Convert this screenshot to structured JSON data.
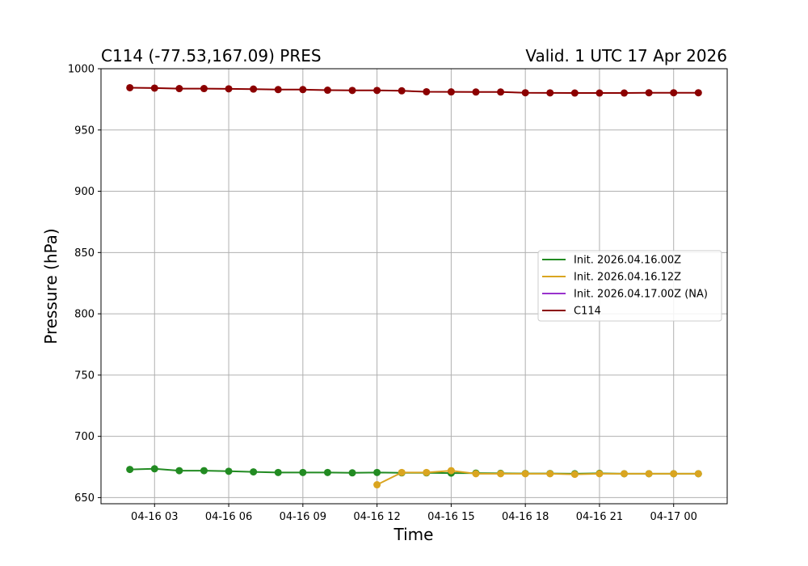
{
  "chart_data": {
    "type": "line",
    "title_left": "C114 (-77.53,167.09) PRES",
    "title_right": "Valid. 1 UTC 17 Apr 2026",
    "xlabel": "Time",
    "ylabel": "Pressure (hPa)",
    "ylim": [
      645,
      1000
    ],
    "yticks": [
      650,
      700,
      750,
      800,
      850,
      900,
      950,
      1000
    ],
    "xlim": [
      "2026-04-16 00:50",
      "2026-04-17 02:10"
    ],
    "xticks": [
      {
        "t": "2026-04-16 03:00",
        "label": "04-16 03"
      },
      {
        "t": "2026-04-16 06:00",
        "label": "04-16 06"
      },
      {
        "t": "2026-04-16 09:00",
        "label": "04-16 09"
      },
      {
        "t": "2026-04-16 12:00",
        "label": "04-16 12"
      },
      {
        "t": "2026-04-16 15:00",
        "label": "04-16 15"
      },
      {
        "t": "2026-04-16 18:00",
        "label": "04-16 18"
      },
      {
        "t": "2026-04-16 21:00",
        "label": "04-16 21"
      },
      {
        "t": "2026-04-17 00:00",
        "label": "04-17 00"
      }
    ],
    "grid": true,
    "legend_position": "center-right",
    "series": [
      {
        "name": "Init. 2026.04.16.00Z",
        "color": "#228b22",
        "x": [
          "2026-04-16 02:00",
          "2026-04-16 03:00",
          "2026-04-16 04:00",
          "2026-04-16 05:00",
          "2026-04-16 06:00",
          "2026-04-16 07:00",
          "2026-04-16 08:00",
          "2026-04-16 09:00",
          "2026-04-16 10:00",
          "2026-04-16 11:00",
          "2026-04-16 12:00",
          "2026-04-16 13:00",
          "2026-04-16 14:00",
          "2026-04-16 15:00",
          "2026-04-16 16:00",
          "2026-04-16 17:00",
          "2026-04-16 18:00",
          "2026-04-16 19:00",
          "2026-04-16 20:00",
          "2026-04-16 21:00",
          "2026-04-16 22:00",
          "2026-04-16 23:00",
          "2026-04-17 00:00",
          "2026-04-17 01:00"
        ],
        "y": [
          673,
          673.5,
          672,
          672,
          671.5,
          671,
          670.5,
          670.5,
          670.5,
          670.2,
          670.5,
          670.2,
          670.2,
          670,
          670,
          669.8,
          669.7,
          669.7,
          669.5,
          669.8,
          669.5,
          669.5,
          669.5,
          669.5
        ]
      },
      {
        "name": "Init. 2026.04.16.12Z",
        "color": "#daa520",
        "x": [
          "2026-04-16 12:00",
          "2026-04-16 13:00",
          "2026-04-16 14:00",
          "2026-04-16 15:00",
          "2026-04-16 16:00",
          "2026-04-16 17:00",
          "2026-04-16 18:00",
          "2026-04-16 19:00",
          "2026-04-16 20:00",
          "2026-04-16 21:00",
          "2026-04-16 22:00",
          "2026-04-16 23:00",
          "2026-04-17 00:00",
          "2026-04-17 01:00"
        ],
        "y": [
          660.5,
          670.5,
          670.5,
          672,
          669.5,
          669.5,
          669.5,
          669.5,
          669,
          669.5,
          669.5,
          669.5,
          669.5,
          669.5
        ]
      },
      {
        "name": "Init. 2026.04.17.00Z (NA)",
        "color": "#9932cc",
        "x": [],
        "y": []
      },
      {
        "name": "C114",
        "color": "#8b0000",
        "x": [
          "2026-04-16 02:00",
          "2026-04-16 03:00",
          "2026-04-16 04:00",
          "2026-04-16 05:00",
          "2026-04-16 06:00",
          "2026-04-16 07:00",
          "2026-04-16 08:00",
          "2026-04-16 09:00",
          "2026-04-16 10:00",
          "2026-04-16 11:00",
          "2026-04-16 12:00",
          "2026-04-16 13:00",
          "2026-04-16 14:00",
          "2026-04-16 15:00",
          "2026-04-16 16:00",
          "2026-04-16 17:00",
          "2026-04-16 18:00",
          "2026-04-16 19:00",
          "2026-04-16 20:00",
          "2026-04-16 21:00",
          "2026-04-16 22:00",
          "2026-04-16 23:00",
          "2026-04-17 00:00",
          "2026-04-17 01:00"
        ],
        "y": [
          984.5,
          984.2,
          983.8,
          983.8,
          983.6,
          983.4,
          983,
          983,
          982.5,
          982.3,
          982.3,
          982,
          981.2,
          981.1,
          981,
          981,
          980.4,
          980.3,
          980.2,
          980.2,
          980.2,
          980.4,
          980.4,
          980.4
        ]
      }
    ]
  }
}
